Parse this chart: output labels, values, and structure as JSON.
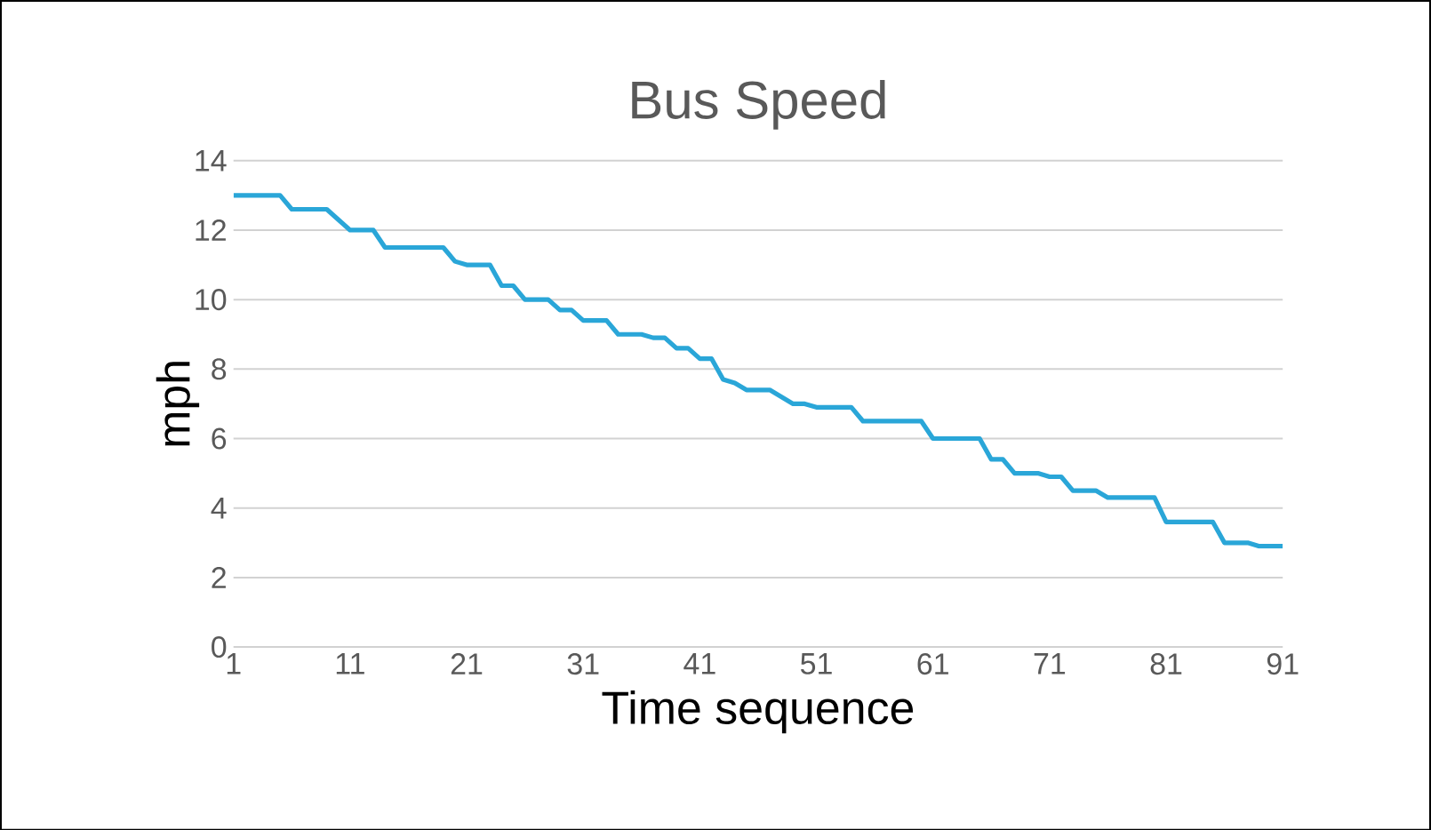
{
  "chart_data": {
    "type": "line",
    "title": "Bus Speed",
    "xlabel": "Time sequence",
    "ylabel": "mph",
    "x": [
      1,
      5,
      6,
      9,
      10,
      11,
      13,
      14,
      19,
      20,
      21,
      22,
      23,
      24,
      25,
      26,
      28,
      29,
      30,
      31,
      33,
      34,
      36,
      37,
      38,
      39,
      40,
      41,
      42,
      43,
      44,
      45,
      47,
      49,
      50,
      51,
      54,
      55,
      59,
      60,
      61,
      65,
      66,
      67,
      68,
      70,
      71,
      72,
      73,
      75,
      76,
      80,
      81,
      85,
      86,
      88,
      89,
      91
    ],
    "series": [
      {
        "color": "#2aa6d8",
        "values": [
          13.0,
          13.0,
          12.6,
          12.6,
          12.3,
          12.0,
          12.0,
          11.5,
          11.5,
          11.1,
          11.0,
          11.0,
          11.0,
          10.4,
          10.4,
          10.0,
          10.0,
          9.7,
          9.7,
          9.4,
          9.4,
          9.0,
          9.0,
          8.9,
          8.9,
          8.6,
          8.6,
          8.3,
          8.3,
          7.7,
          7.6,
          7.4,
          7.4,
          7.0,
          7.0,
          6.9,
          6.9,
          6.5,
          6.5,
          6.5,
          6.0,
          6.0,
          5.4,
          5.4,
          5.0,
          5.0,
          4.9,
          4.9,
          4.5,
          4.5,
          4.3,
          4.3,
          3.6,
          3.6,
          3.0,
          3.0,
          2.9,
          2.9
        ]
      }
    ],
    "xlim": [
      1,
      91
    ],
    "xticks": [
      1,
      11,
      21,
      31,
      41,
      51,
      61,
      71,
      81,
      91
    ],
    "ylim": [
      0,
      14
    ],
    "yticks": [
      0,
      2,
      4,
      6,
      8,
      10,
      12,
      14
    ],
    "grid": "y",
    "marker": "none",
    "line_style": "solid"
  }
}
